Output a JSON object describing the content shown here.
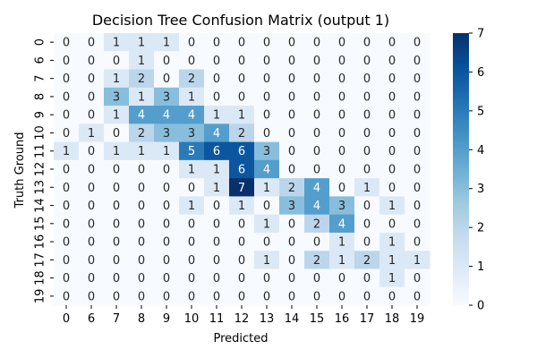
{
  "chart_data": {
    "type": "heatmap",
    "title": "Decision Tree Confusion Matrix (output 1)",
    "xlabel": "Predicted",
    "ylabel": "Truth Ground",
    "x_categories": [
      "0",
      "6",
      "7",
      "8",
      "9",
      "10",
      "11",
      "12",
      "13",
      "14",
      "15",
      "16",
      "17",
      "18",
      "19"
    ],
    "y_categories": [
      "0",
      "6",
      "7",
      "8",
      "9",
      "10",
      "11",
      "12",
      "13",
      "14",
      "15",
      "16",
      "17",
      "18",
      "19"
    ],
    "values": [
      [
        0,
        0,
        1,
        1,
        1,
        0,
        0,
        0,
        0,
        0,
        0,
        0,
        0,
        0,
        0
      ],
      [
        0,
        0,
        0,
        1,
        0,
        0,
        0,
        0,
        0,
        0,
        0,
        0,
        0,
        0,
        0
      ],
      [
        0,
        0,
        1,
        2,
        0,
        2,
        0,
        0,
        0,
        0,
        0,
        0,
        0,
        0,
        0
      ],
      [
        0,
        0,
        3,
        1,
        3,
        1,
        0,
        0,
        0,
        0,
        0,
        0,
        0,
        0,
        0
      ],
      [
        0,
        0,
        1,
        4,
        4,
        4,
        1,
        1,
        0,
        0,
        0,
        0,
        0,
        0,
        0
      ],
      [
        0,
        1,
        0,
        2,
        3,
        3,
        4,
        2,
        0,
        0,
        0,
        0,
        0,
        0,
        0
      ],
      [
        1,
        0,
        1,
        1,
        1,
        5,
        6,
        6,
        3,
        0,
        0,
        0,
        0,
        0,
        0
      ],
      [
        0,
        0,
        0,
        0,
        0,
        1,
        1,
        6,
        4,
        0,
        0,
        0,
        0,
        0,
        0
      ],
      [
        0,
        0,
        0,
        0,
        0,
        0,
        1,
        7,
        1,
        2,
        4,
        0,
        1,
        0,
        0
      ],
      [
        0,
        0,
        0,
        0,
        0,
        1,
        0,
        1,
        0,
        3,
        4,
        3,
        0,
        1,
        0
      ],
      [
        0,
        0,
        0,
        0,
        0,
        0,
        0,
        0,
        1,
        0,
        2,
        4,
        0,
        0,
        0
      ],
      [
        0,
        0,
        0,
        0,
        0,
        0,
        0,
        0,
        0,
        0,
        0,
        1,
        0,
        1,
        0
      ],
      [
        0,
        0,
        0,
        0,
        0,
        0,
        0,
        0,
        1,
        0,
        2,
        1,
        2,
        1,
        1
      ],
      [
        0,
        0,
        0,
        0,
        0,
        0,
        0,
        0,
        0,
        0,
        0,
        0,
        0,
        1,
        0
      ],
      [
        0,
        0,
        0,
        0,
        0,
        0,
        0,
        0,
        0,
        0,
        0,
        0,
        0,
        0,
        0
      ]
    ],
    "value_range": [
      0,
      7
    ],
    "colorbar_ticks": [
      0,
      1,
      2,
      3,
      4,
      5,
      6,
      7
    ],
    "colormap": "Blues",
    "grid": false
  }
}
